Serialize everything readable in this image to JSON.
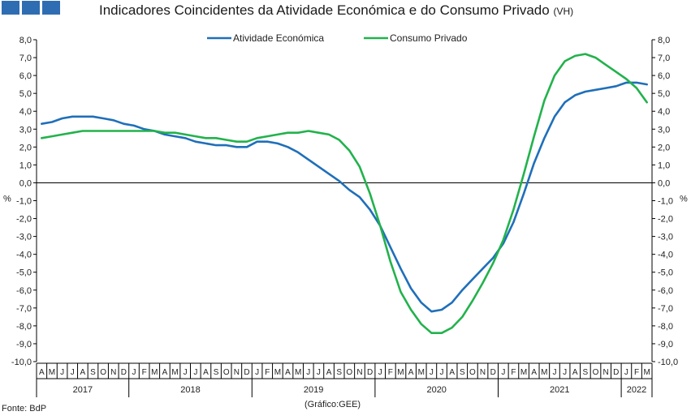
{
  "header": {
    "title": "Indicadores Coincidentes da Atividade Económica e do Consumo Privado",
    "title_suffix": "(VH)"
  },
  "footer": {
    "source": "Fonte: BdP",
    "credit": "(Gráfico:GEE)"
  },
  "colors": {
    "logo": "#2f6db3",
    "series_1": "#1f6fba",
    "series_2": "#22b24c",
    "grid": "#000000"
  },
  "chart_data": {
    "type": "line",
    "title": "Indicadores Coincidentes da Atividade Económica e do Consumo Privado (VH)",
    "ylabel_left": "%",
    "ylabel_right": "%",
    "ylim": [
      -10,
      8
    ],
    "ystep": 1,
    "ytick_labels": [
      "8,0",
      "7,0",
      "6,0",
      "5,0",
      "4,0",
      "3,0",
      "2,0",
      "1,0",
      "0,0",
      "-1,0",
      "-2,0",
      "-3,0",
      "-4,0",
      "-5,0",
      "-6,0",
      "-7,0",
      "-8,0",
      "-9,0",
      "-10,0"
    ],
    "month_labels": [
      "A",
      "M",
      "J",
      "J",
      "A",
      "S",
      "O",
      "N",
      "D",
      "J",
      "F",
      "M",
      "A",
      "M",
      "J",
      "J",
      "A",
      "S",
      "O",
      "N",
      "D",
      "J",
      "F",
      "M",
      "A",
      "M",
      "J",
      "J",
      "A",
      "S",
      "O",
      "N",
      "D",
      "J",
      "F",
      "M",
      "A",
      "M",
      "J",
      "J",
      "A",
      "S",
      "O",
      "N",
      "D",
      "J",
      "F",
      "M",
      "A",
      "M",
      "J",
      "J",
      "A",
      "S",
      "O",
      "N",
      "D",
      "J",
      "F",
      "M"
    ],
    "years": [
      {
        "label": "2017",
        "start": 0,
        "count": 9
      },
      {
        "label": "2018",
        "start": 9,
        "count": 12
      },
      {
        "label": "2019",
        "start": 21,
        "count": 12
      },
      {
        "label": "2020",
        "start": 33,
        "count": 12
      },
      {
        "label": "2021",
        "start": 45,
        "count": 12
      },
      {
        "label": "2022",
        "start": 57,
        "count": 3
      }
    ],
    "legend_position": "top-center",
    "grid": false,
    "series": [
      {
        "name": "Atividade Económica",
        "color": "#1f6fba",
        "values": [
          3.3,
          3.4,
          3.6,
          3.7,
          3.7,
          3.7,
          3.6,
          3.5,
          3.3,
          3.2,
          3.0,
          2.9,
          2.7,
          2.6,
          2.5,
          2.3,
          2.2,
          2.1,
          2.1,
          2.0,
          2.0,
          2.3,
          2.3,
          2.2,
          2.0,
          1.7,
          1.3,
          0.9,
          0.5,
          0.1,
          -0.4,
          -0.8,
          -1.5,
          -2.4,
          -3.6,
          -4.8,
          -5.9,
          -6.7,
          -7.2,
          -7.1,
          -6.7,
          -6.0,
          -5.4,
          -4.8,
          -4.2,
          -3.4,
          -2.2,
          -0.6,
          1.1,
          2.5,
          3.7,
          4.5,
          4.9,
          5.1,
          5.2,
          5.3,
          5.4,
          5.6,
          5.6,
          5.5
        ]
      },
      {
        "name": "Consumo Privado",
        "color": "#22b24c",
        "values": [
          2.5,
          2.6,
          2.7,
          2.8,
          2.9,
          2.9,
          2.9,
          2.9,
          2.9,
          2.9,
          2.9,
          2.9,
          2.8,
          2.8,
          2.7,
          2.6,
          2.5,
          2.5,
          2.4,
          2.3,
          2.3,
          2.5,
          2.6,
          2.7,
          2.8,
          2.8,
          2.9,
          2.8,
          2.7,
          2.4,
          1.8,
          0.9,
          -0.6,
          -2.4,
          -4.4,
          -6.1,
          -7.1,
          -7.9,
          -8.4,
          -8.4,
          -8.1,
          -7.5,
          -6.6,
          -5.6,
          -4.5,
          -3.2,
          -1.5,
          0.5,
          2.6,
          4.6,
          6.0,
          6.8,
          7.1,
          7.2,
          7.0,
          6.6,
          6.2,
          5.8,
          5.3,
          4.5
        ]
      }
    ]
  }
}
